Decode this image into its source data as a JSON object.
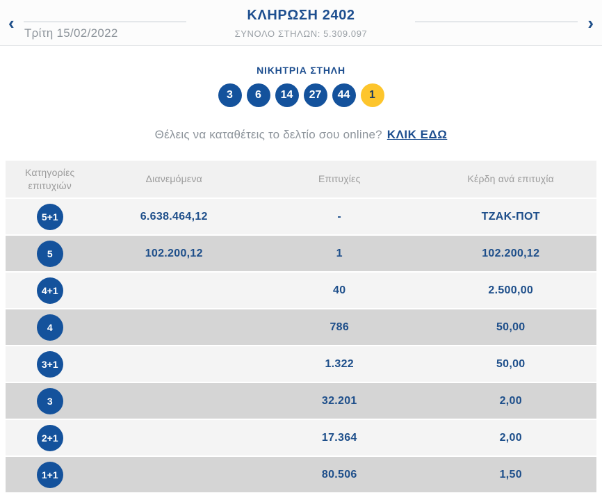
{
  "header": {
    "title": "ΚΛΗΡΩΣΗ 2402",
    "subtitle": "ΣΥΝΟΛΟ ΣΤΗΛΩΝ: 5.309.097",
    "date": "Τρίτη 15/02/2022",
    "prev_icon": "‹",
    "next_icon": "›"
  },
  "winning_column": {
    "heading": "ΝΙΚΗΤΡΙΑ ΣΤΗΛΗ",
    "numbers": [
      "3",
      "6",
      "14",
      "27",
      "44"
    ],
    "joker": "1"
  },
  "cta": {
    "question": "Θέλεις να καταθέτεις το δελτίο σου online?",
    "link_label": "ΚΛΙΚ ΕΔΩ"
  },
  "table": {
    "headers": {
      "category": "Κατηγορίες επιτυχιών",
      "distributed": "Διανεμόμενα",
      "wins": "Επιτυχίες",
      "prize": "Κέρδη ανά επιτυχία"
    },
    "rows": [
      {
        "category": "5+1",
        "distributed": "6.638.464,12",
        "wins": "-",
        "prize": "ΤΖΑΚ-ΠΟΤ"
      },
      {
        "category": "5",
        "distributed": "102.200,12",
        "wins": "1",
        "prize": "102.200,12"
      },
      {
        "category": "4+1",
        "distributed": "",
        "wins": "40",
        "prize": "2.500,00"
      },
      {
        "category": "4",
        "distributed": "",
        "wins": "786",
        "prize": "50,00"
      },
      {
        "category": "3+1",
        "distributed": "",
        "wins": "1.322",
        "prize": "50,00"
      },
      {
        "category": "3",
        "distributed": "",
        "wins": "32.201",
        "prize": "2,00"
      },
      {
        "category": "2+1",
        "distributed": "",
        "wins": "17.364",
        "prize": "2,00"
      },
      {
        "category": "1+1",
        "distributed": "",
        "wins": "80.506",
        "prize": "1,50"
      }
    ]
  },
  "colors": {
    "primary_blue": "#14529c",
    "text_blue": "#1d4e8f",
    "joker_yellow": "#fdc52c",
    "row_light": "#f4f4f4",
    "row_dark": "#d5d5d5",
    "header_gray": "#f1f1f1",
    "muted_text": "#8d949b"
  }
}
